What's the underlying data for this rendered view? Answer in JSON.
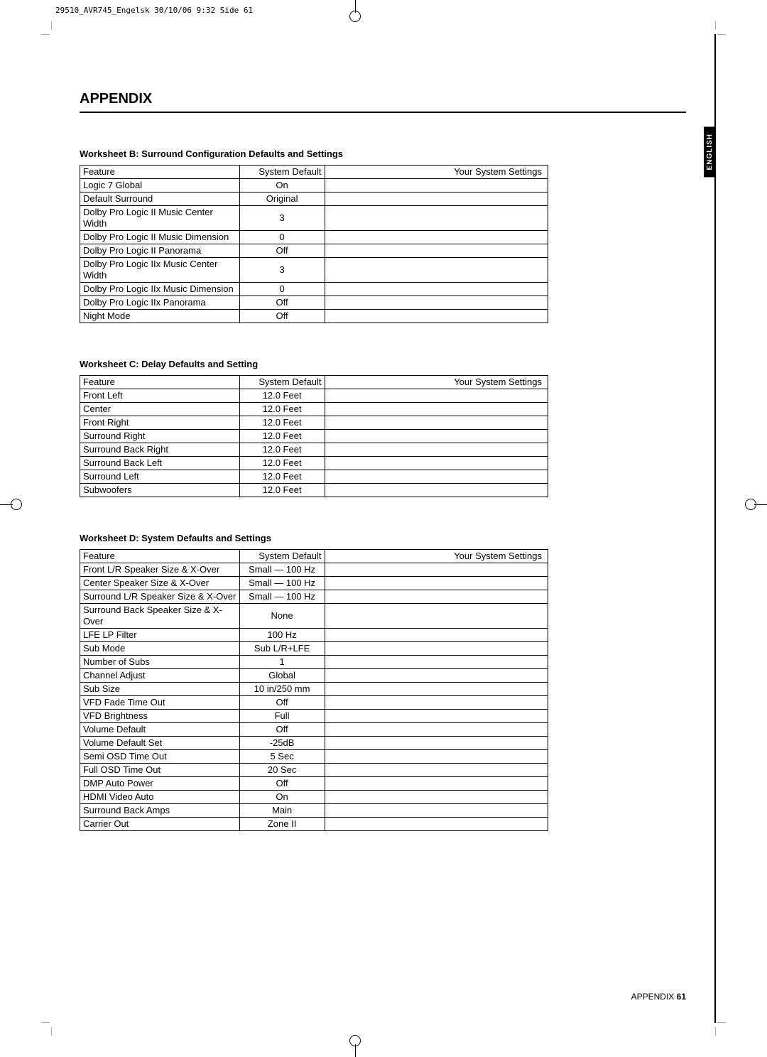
{
  "print_header": "29510_AVR745_Engelsk  30/10/06  9:32  Side 61",
  "section_title": "APPENDIX",
  "side_tab": "ENGLISH",
  "footer_label": "APPENDIX",
  "footer_page": "61",
  "worksheet_b": {
    "title": "Worksheet B: Surround Configuration Defaults and Settings",
    "headers": [
      "Feature",
      "System Default",
      "Your System Settings"
    ],
    "rows": [
      [
        "Logic 7 Global",
        "On",
        ""
      ],
      [
        "Default Surround",
        "Original",
        ""
      ],
      [
        "Dolby Pro Logic II Music Center Width",
        "3",
        ""
      ],
      [
        "Dolby Pro Logic II Music Dimension",
        "0",
        ""
      ],
      [
        "Dolby Pro Logic II Panorama",
        "Off",
        ""
      ],
      [
        "Dolby Pro Logic IIx Music Center Width",
        "3",
        ""
      ],
      [
        "Dolby Pro Logic IIx Music Dimension",
        "0",
        ""
      ],
      [
        "Dolby Pro Logic IIx Panorama",
        "Off",
        ""
      ],
      [
        "Night Mode",
        "Off",
        ""
      ]
    ]
  },
  "worksheet_c": {
    "title": "Worksheet C: Delay Defaults and Setting",
    "headers": [
      "Feature",
      "System Default",
      "Your System Settings"
    ],
    "rows": [
      [
        "Front Left",
        "12.0 Feet",
        ""
      ],
      [
        "Center",
        "12.0 Feet",
        ""
      ],
      [
        "Front Right",
        "12.0 Feet",
        ""
      ],
      [
        "Surround Right",
        "12.0 Feet",
        ""
      ],
      [
        "Surround Back Right",
        "12.0 Feet",
        ""
      ],
      [
        "Surround Back Left",
        "12.0 Feet",
        ""
      ],
      [
        "Surround Left",
        "12.0 Feet",
        ""
      ],
      [
        "Subwoofers",
        "12.0 Feet",
        ""
      ]
    ]
  },
  "worksheet_d": {
    "title": "Worksheet D: System Defaults and Settings",
    "headers": [
      "Feature",
      "System Default",
      "Your System Settings"
    ],
    "rows": [
      [
        "Front L/R Speaker Size & X-Over",
        "Small — 100 Hz",
        ""
      ],
      [
        "Center Speaker Size & X-Over",
        "Small — 100 Hz",
        ""
      ],
      [
        "Surround L/R Speaker Size & X-Over",
        "Small — 100 Hz",
        ""
      ],
      [
        "Surround Back Speaker Size & X-Over",
        "None",
        ""
      ],
      [
        "LFE LP Filter",
        "100 Hz",
        ""
      ],
      [
        "Sub Mode",
        "Sub L/R+LFE",
        ""
      ],
      [
        "Number of Subs",
        "1",
        ""
      ],
      [
        "Channel Adjust",
        "Global",
        ""
      ],
      [
        "Sub Size",
        "10 in/250 mm",
        ""
      ],
      [
        "VFD Fade Time Out",
        "Off",
        ""
      ],
      [
        "VFD Brightness",
        "Full",
        ""
      ],
      [
        "Volume Default",
        "Off",
        ""
      ],
      [
        "Volume Default Set",
        "-25dB",
        ""
      ],
      [
        "Semi OSD Time Out",
        "5 Sec",
        ""
      ],
      [
        "Full OSD Time Out",
        "20 Sec",
        ""
      ],
      [
        "DMP Auto Power",
        "Off",
        ""
      ],
      [
        "HDMI Video Auto",
        "On",
        ""
      ],
      [
        "Surround Back Amps",
        "Main",
        ""
      ],
      [
        "Carrier Out",
        "Zone II",
        ""
      ]
    ]
  }
}
